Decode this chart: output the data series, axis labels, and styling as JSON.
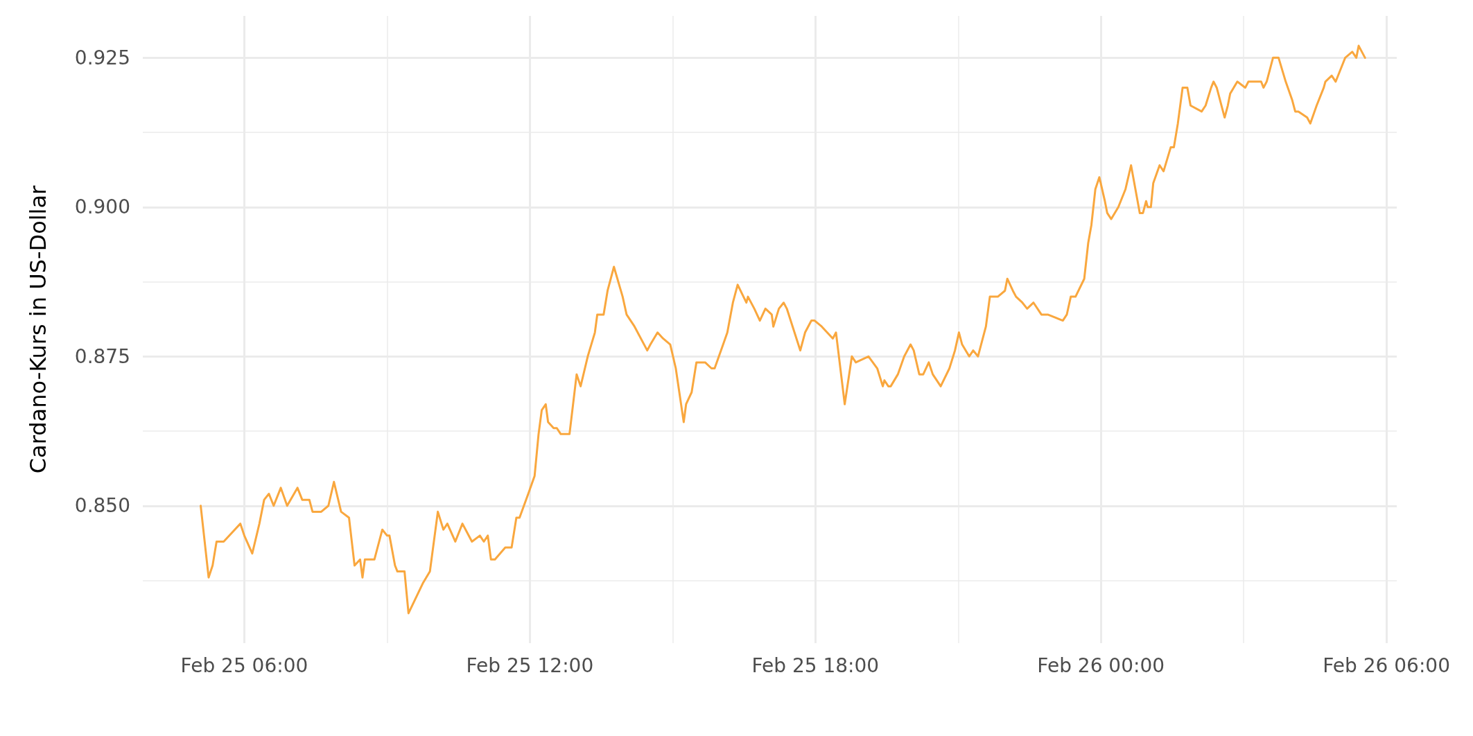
{
  "chart_data": {
    "type": "line",
    "ylabel": "Cardano-Kurs in US-Dollar",
    "x": [
      "--02-25T05:05",
      "--02-25T05:15",
      "--02-25T05:20",
      "--02-25T05:25",
      "--02-25T05:34",
      "--02-25T05:55",
      "--02-25T06:00",
      "--02-25T06:10",
      "--02-25T06:19",
      "--02-25T06:25",
      "--02-25T06:31",
      "--02-25T06:37",
      "--02-25T06:46",
      "--02-25T06:54",
      "--02-25T07:07",
      "--02-25T07:13",
      "--02-25T07:22",
      "--02-25T07:26",
      "--02-25T07:37",
      "--02-25T07:46",
      "--02-25T07:53",
      "--02-25T08:02",
      "--02-25T08:12",
      "--02-25T08:19",
      "--02-25T08:26",
      "--02-25T08:29",
      "--02-25T08:32",
      "--02-25T08:44",
      "--02-25T08:54",
      "--02-25T09:00",
      "--02-25T09:03",
      "--02-25T09:10",
      "--02-25T09:13",
      "--02-25T09:22",
      "--02-25T09:27",
      "--02-25T09:45",
      "--02-25T09:54",
      "--02-25T10:04",
      "--02-25T10:11",
      "--02-25T10:16",
      "--02-25T10:26",
      "--02-25T10:35",
      "--02-25T10:47",
      "--02-25T10:57",
      "--02-25T11:02",
      "--02-25T11:07",
      "--02-25T11:11",
      "--02-25T11:16",
      "--02-25T11:29",
      "--02-25T11:37",
      "--02-25T11:43",
      "--02-25T11:47",
      "--02-25T11:58",
      "--02-25T12:06",
      "--02-25T12:11",
      "--02-25T12:15",
      "--02-25T12:20",
      "--02-25T12:23",
      "--02-25T12:30",
      "--02-25T12:34",
      "--02-25T12:39",
      "--02-25T12:50",
      "--02-25T12:59",
      "--02-25T13:04",
      "--02-25T13:13",
      "--02-25T13:22",
      "--02-25T13:25",
      "--02-25T13:33",
      "--02-25T13:38",
      "--02-25T13:46",
      "--02-25T13:57",
      "--02-25T14:02",
      "--02-25T14:12",
      "--02-25T14:28",
      "--02-25T14:32",
      "--02-25T14:41",
      "--02-25T14:48",
      "--02-25T14:57",
      "--02-25T15:04",
      "--02-25T15:14",
      "--02-25T15:17",
      "--02-25T15:24",
      "--02-25T15:30",
      "--02-25T15:41",
      "--02-25T15:49",
      "--02-25T15:53",
      "--02-25T16:01",
      "--02-25T16:09",
      "--02-25T16:16",
      "--02-25T16:22",
      "--02-25T16:33",
      "--02-25T16:35",
      "--02-25T16:43",
      "--02-25T16:50",
      "--02-25T16:57",
      "--02-25T17:05",
      "--02-25T17:07",
      "--02-25T17:14",
      "--02-25T17:20",
      "--02-25T17:24",
      "--02-25T17:41",
      "--02-25T17:47",
      "--02-25T17:55",
      "--02-25T17:59",
      "--02-25T18:08",
      "--02-25T18:22",
      "--02-25T18:26",
      "--02-25T18:37",
      "--02-25T18:46",
      "--02-25T18:51",
      "--02-25T19:07",
      "--02-25T19:18",
      "--02-25T19:25",
      "--02-25T19:27",
      "--02-25T19:32",
      "--02-25T19:35",
      "--02-25T19:44",
      "--02-25T19:52",
      "--02-25T20:00",
      "--02-25T20:04",
      "--02-25T20:11",
      "--02-25T20:16",
      "--02-25T20:23",
      "--02-25T20:28",
      "--02-25T20:38",
      "--02-25T20:49",
      "--02-25T20:56",
      "--02-25T21:01",
      "--02-25T21:05",
      "--02-25T21:14",
      "--02-25T21:19",
      "--02-25T21:25",
      "--02-25T21:35",
      "--02-25T21:40",
      "--02-25T21:45",
      "--02-25T21:50",
      "--02-25T21:59",
      "--02-25T22:02",
      "--02-25T22:09",
      "--02-25T22:13",
      "--02-25T22:21",
      "--02-25T22:27",
      "--02-25T22:35",
      "--02-25T22:45",
      "--02-25T22:53",
      "--02-25T23:12",
      "--02-25T23:17",
      "--02-25T23:22",
      "--02-25T23:28",
      "--02-25T23:39",
      "--02-25T23:44",
      "--02-25T23:48",
      "--02-25T23:53",
      "--02-25T23:58",
      "--02-26T00:05",
      "--02-26T00:08",
      "--02-26T00:13",
      "--02-26T00:22",
      "--02-26T00:31",
      "--02-26T00:38",
      "--02-26T00:49",
      "--02-26T00:53",
      "--02-26T00:57",
      "--02-26T00:59",
      "--02-26T01:03",
      "--02-26T01:06",
      "--02-26T01:14",
      "--02-26T01:19",
      "--02-26T01:28",
      "--02-26T01:32",
      "--02-26T01:37",
      "--02-26T01:43",
      "--02-26T01:46",
      "--02-26T01:49",
      "--02-26T01:53",
      "--02-26T02:07",
      "--02-26T02:12",
      "--02-26T02:19",
      "--02-26T02:22",
      "--02-26T02:26",
      "--02-26T02:36",
      "--02-26T02:40",
      "--02-26T02:43",
      "--02-26T02:52",
      "--02-26T03:02",
      "--02-26T03:06",
      "--02-26T03:11",
      "--02-26T03:15",
      "--02-26T03:22",
      "--02-26T03:25",
      "--02-26T03:29",
      "--02-26T03:33",
      "--02-26T03:37",
      "--02-26T03:41",
      "--02-26T03:44",
      "--02-26T03:53",
      "--02-26T04:01",
      "--02-26T04:05",
      "--02-26T04:09",
      "--02-26T04:20",
      "--02-26T04:24",
      "--02-26T04:32",
      "--02-26T04:41",
      "--02-26T04:43",
      "--02-26T04:51",
      "--02-26T04:56",
      "--02-26T05:05",
      "--02-26T05:08",
      "--02-26T05:17",
      "--02-26T05:22",
      "--02-26T05:25",
      "--02-26T05:33"
    ],
    "values": [
      0.85,
      0.838,
      0.84,
      0.844,
      0.844,
      0.847,
      0.845,
      0.842,
      0.847,
      0.851,
      0.852,
      0.85,
      0.853,
      0.85,
      0.853,
      0.851,
      0.851,
      0.849,
      0.849,
      0.85,
      0.854,
      0.849,
      0.848,
      0.84,
      0.841,
      0.838,
      0.841,
      0.841,
      0.846,
      0.845,
      0.845,
      0.84,
      0.839,
      0.839,
      0.832,
      0.837,
      0.839,
      0.849,
      0.846,
      0.847,
      0.844,
      0.847,
      0.844,
      0.845,
      0.844,
      0.845,
      0.841,
      0.841,
      0.843,
      0.843,
      0.848,
      0.848,
      0.852,
      0.855,
      0.862,
      0.866,
      0.867,
      0.864,
      0.863,
      0.863,
      0.862,
      0.862,
      0.872,
      0.87,
      0.875,
      0.879,
      0.882,
      0.882,
      0.886,
      0.89,
      0.885,
      0.882,
      0.88,
      0.876,
      0.877,
      0.879,
      0.878,
      0.877,
      0.873,
      0.864,
      0.867,
      0.869,
      0.874,
      0.874,
      0.873,
      0.873,
      0.876,
      0.879,
      0.884,
      0.887,
      0.884,
      0.885,
      0.883,
      0.881,
      0.883,
      0.882,
      0.88,
      0.883,
      0.884,
      0.883,
      0.876,
      0.879,
      0.881,
      0.881,
      0.88,
      0.878,
      0.879,
      0.867,
      0.875,
      0.874,
      0.875,
      0.873,
      0.87,
      0.871,
      0.87,
      0.87,
      0.872,
      0.875,
      0.877,
      0.876,
      0.872,
      0.872,
      0.874,
      0.872,
      0.87,
      0.873,
      0.876,
      0.879,
      0.877,
      0.875,
      0.876,
      0.875,
      0.88,
      0.885,
      0.885,
      0.885,
      0.886,
      0.888,
      0.886,
      0.885,
      0.884,
      0.883,
      0.884,
      0.882,
      0.882,
      0.881,
      0.882,
      0.885,
      0.885,
      0.888,
      0.894,
      0.897,
      0.903,
      0.905,
      0.901,
      0.899,
      0.898,
      0.9,
      0.903,
      0.907,
      0.899,
      0.899,
      0.901,
      0.9,
      0.9,
      0.904,
      0.907,
      0.906,
      0.91,
      0.91,
      0.914,
      0.92,
      0.92,
      0.92,
      0.917,
      0.916,
      0.917,
      0.92,
      0.921,
      0.92,
      0.915,
      0.917,
      0.919,
      0.921,
      0.92,
      0.921,
      0.921,
      0.921,
      0.921,
      0.92,
      0.921,
      0.923,
      0.925,
      0.925,
      0.925,
      0.921,
      0.918,
      0.916,
      0.916,
      0.915,
      0.914,
      0.917,
      0.92,
      0.921,
      0.922,
      0.921,
      0.924,
      0.925,
      0.926,
      0.925,
      0.927,
      0.925
    ],
    "color": "#f9a73e",
    "marker": "none",
    "line_style": "solid",
    "grid": true,
    "xlim": [
      "--02-25T03:52",
      "--02-26T06:13"
    ],
    "xticks": [
      {
        "value": "--02-25T06:00",
        "label": "Feb 25 06:00"
      },
      {
        "value": "--02-25T09:00",
        "label": null
      },
      {
        "value": "--02-25T12:00",
        "label": "Feb 25 12:00"
      },
      {
        "value": "--02-25T15:00",
        "label": null
      },
      {
        "value": "--02-25T18:00",
        "label": "Feb 25 18:00"
      },
      {
        "value": "--02-25T21:00",
        "label": null
      },
      {
        "value": "--02-26T00:00",
        "label": "Feb 26 00:00"
      },
      {
        "value": "--02-26T03:00",
        "label": null
      },
      {
        "value": "--02-26T06:00",
        "label": "Feb 26 06:00"
      }
    ],
    "ylim": [
      0.827,
      0.932
    ],
    "yticks": [
      {
        "value": 0.8375,
        "label": null
      },
      {
        "value": 0.85,
        "label": "0.850"
      },
      {
        "value": 0.8625,
        "label": null
      },
      {
        "value": 0.875,
        "label": "0.875"
      },
      {
        "value": 0.8875,
        "label": null
      },
      {
        "value": 0.9,
        "label": "0.900"
      },
      {
        "value": 0.9125,
        "label": null
      },
      {
        "value": 0.925,
        "label": "0.925"
      }
    ]
  }
}
